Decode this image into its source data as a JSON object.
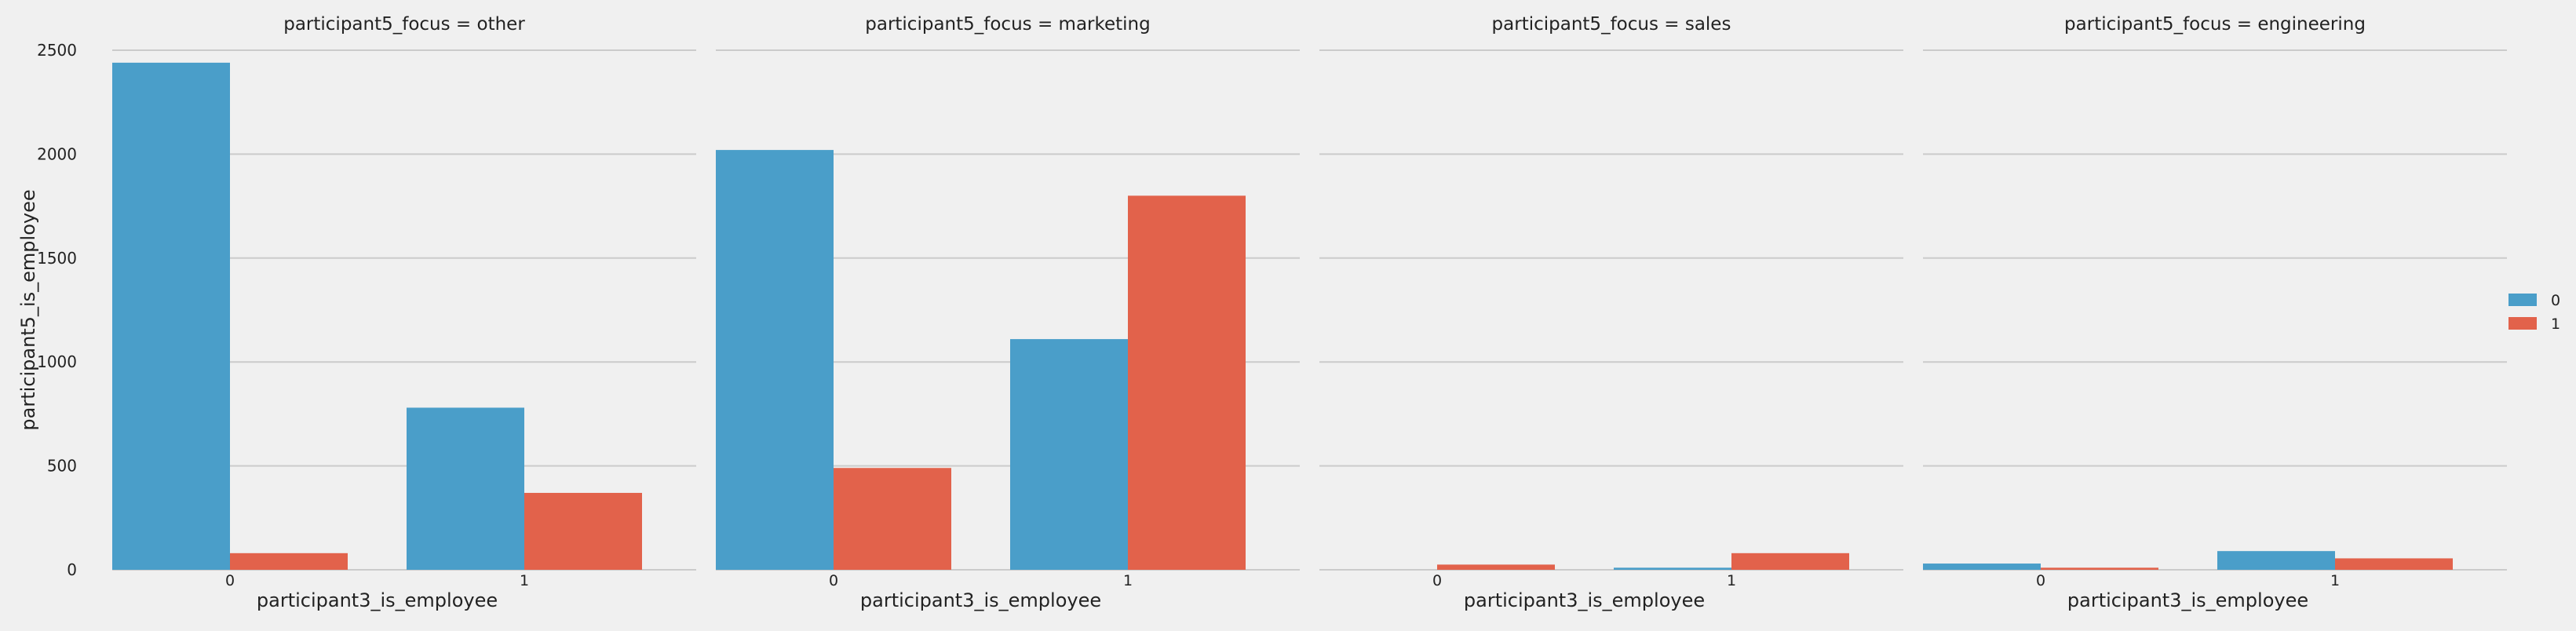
{
  "chart_data": {
    "type": "bar",
    "ylabel": "participant5_is_employee",
    "ylim": [
      0,
      2500
    ],
    "yticks": [
      "0",
      "500",
      "1000",
      "1500",
      "2000",
      "2500"
    ],
    "grid": true,
    "legend": {
      "placement": "right",
      "entries": [
        {
          "label": "0",
          "color": "#4a9ec9"
        },
        {
          "label": "1",
          "color": "#e2624b"
        }
      ]
    },
    "panels": [
      {
        "title": "participant5_focus = other",
        "xlabel": "participant3_is_employee",
        "categories": [
          "0",
          "1"
        ],
        "series": [
          {
            "name": "0",
            "color": "#4a9ec9",
            "values": [
              2440,
              780
            ]
          },
          {
            "name": "1",
            "color": "#e2624b",
            "values": [
              80,
              370
            ]
          }
        ]
      },
      {
        "title": "participant5_focus = marketing",
        "xlabel": "participant3_is_employee",
        "categories": [
          "0",
          "1"
        ],
        "series": [
          {
            "name": "0",
            "color": "#4a9ec9",
            "values": [
              2020,
              1110
            ]
          },
          {
            "name": "1",
            "color": "#e2624b",
            "values": [
              490,
              1800
            ]
          }
        ]
      },
      {
        "title": "participant5_focus = sales",
        "xlabel": "participant3_is_employee",
        "categories": [
          "0",
          "1"
        ],
        "series": [
          {
            "name": "0",
            "color": "#4a9ec9",
            "values": [
              0,
              10
            ]
          },
          {
            "name": "1",
            "color": "#e2624b",
            "values": [
              25,
              80
            ]
          }
        ]
      },
      {
        "title": "participant5_focus = engineering",
        "xlabel": "participant3_is_employee",
        "categories": [
          "0",
          "1"
        ],
        "series": [
          {
            "name": "0",
            "color": "#4a9ec9",
            "values": [
              30,
              90
            ]
          },
          {
            "name": "1",
            "color": "#e2624b",
            "values": [
              10,
              55
            ]
          }
        ]
      }
    ]
  }
}
